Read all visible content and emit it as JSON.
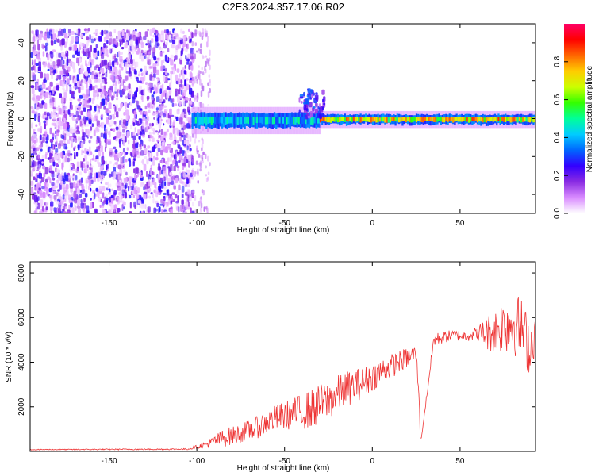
{
  "title": "C2E3.2024.357.17.06.R02",
  "chart_data": [
    {
      "type": "heatmap",
      "xlabel": "Height of straight line (km)",
      "ylabel": "Frequency (Hz)",
      "xlim": [
        -195,
        93
      ],
      "ylim": [
        -50,
        50
      ],
      "xticks": [
        -150,
        -100,
        -50,
        0,
        50
      ],
      "yticks": [
        -40,
        -20,
        0,
        20,
        40
      ],
      "grid": false,
      "colorbar": {
        "label": "Normalized spectral amplitude",
        "range": [
          0,
          1
        ],
        "ticks": [
          "0.0",
          "0.2",
          "0.4",
          "0.6",
          "0.8"
        ],
        "colors": [
          "#ffffff",
          "#d98cff",
          "#8a2be2",
          "#3300ff",
          "#0066ff",
          "#00ccff",
          "#00ff99",
          "#33ff00",
          "#ccff00",
          "#ffcc00",
          "#ff6600",
          "#ff0000",
          "#ff0066"
        ]
      },
      "regions": [
        {
          "x": [
            -195,
            -103
          ],
          "y": [
            -50,
            48
          ],
          "amplitude": 0.2,
          "pattern": "noise"
        },
        {
          "x": [
            -103,
            -30
          ],
          "y": [
            -5,
            3
          ],
          "amplitude": 0.5,
          "pattern": "band"
        },
        {
          "x": [
            -30,
            93
          ],
          "y": [
            -3,
            2
          ],
          "amplitude": 0.85,
          "pattern": "band"
        },
        {
          "x": [
            -42,
            -28
          ],
          "y": [
            2,
            16
          ],
          "amplitude": 0.25,
          "pattern": "plume"
        }
      ]
    },
    {
      "type": "line",
      "xlabel": "Height of straight line (km)",
      "ylabel": "SNR (10 * v/v)",
      "xlim": [
        -195,
        93
      ],
      "ylim": [
        0,
        8500
      ],
      "xticks": [
        -150,
        -100,
        -50,
        0,
        50
      ],
      "yticks": [
        2000,
        4000,
        6000,
        8000
      ],
      "grid": false,
      "series": [
        {
          "color": "#ee3333",
          "x": [
            -195,
            -150,
            -105,
            -95,
            -85,
            -75,
            -65,
            -55,
            -45,
            -35,
            -25,
            -15,
            -5,
            5,
            15,
            25,
            28,
            35,
            45,
            55,
            60,
            65,
            70,
            75,
            80,
            85,
            90,
            93
          ],
          "y": [
            80,
            90,
            100,
            300,
            600,
            800,
            1100,
            1500,
            1700,
            1900,
            2300,
            2800,
            3100,
            3600,
            4000,
            4400,
            600,
            5000,
            5200,
            5200,
            5300,
            5300,
            5400,
            5700,
            5800,
            5500,
            4600,
            5500
          ],
          "noise": [
            20,
            25,
            30,
            150,
            400,
            450,
            500,
            600,
            700,
            900,
            900,
            800,
            700,
            600,
            500,
            400,
            0,
            300,
            250,
            250,
            300,
            800,
            1000,
            1300,
            1500,
            1400,
            1300,
            1000
          ]
        }
      ]
    }
  ]
}
